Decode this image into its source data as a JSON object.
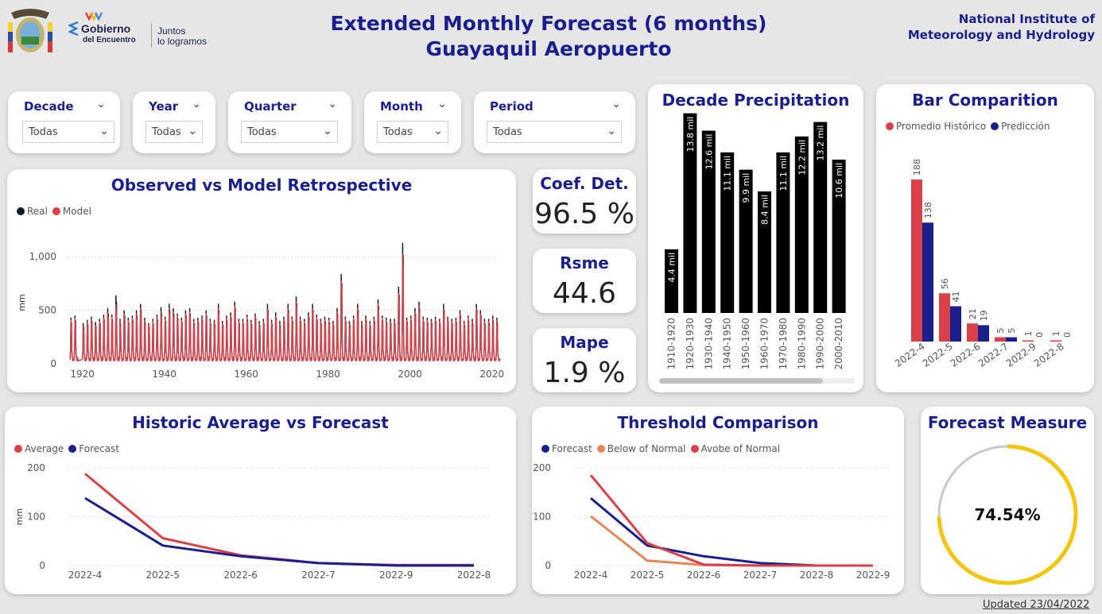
{
  "header": {
    "title_line1": "Extended Monthly Forecast (6 months)",
    "title_line2": "Guayaquil Aeropuerto",
    "institute_line1": "National Institute of",
    "institute_line2": "Meteorology and Hydrology",
    "gob_line1": "Gobierno",
    "gob_line2": "del Encuentro",
    "gob_slogan1": "Juntos",
    "gob_slogan2": "lo logramos"
  },
  "slicers": [
    {
      "label": "Decade",
      "value": "Todas"
    },
    {
      "label": "Year",
      "value": "Todas"
    },
    {
      "label": "Quarter",
      "value": "Todas"
    },
    {
      "label": "Month",
      "value": "Todas"
    },
    {
      "label": "Period",
      "value": "Todas"
    }
  ],
  "kpis": [
    {
      "title": "Coef. Det.",
      "value": "96.5 %"
    },
    {
      "title": "Rsme",
      "value": "44.6"
    },
    {
      "title": "Mape",
      "value": "1.9 %"
    }
  ],
  "footer": {
    "updated": "Updated 23/04/2022"
  },
  "colors": {
    "navy": "#1a1f8c",
    "red": "#d9414a",
    "black": "#000000",
    "orange": "#e8845a",
    "gauge": "#f2c511"
  },
  "chart_data": [
    {
      "type": "line",
      "title": "Observed vs Model Retrospective",
      "ylabel": "mm",
      "ylim": [
        0,
        1150
      ],
      "yticks": [
        0,
        500,
        1000
      ],
      "ytick_labels": [
        "0",
        "500",
        "1,000"
      ],
      "xlim": [
        1916,
        2022
      ],
      "xticks": [
        1920,
        1940,
        1960,
        1980,
        2000,
        2020
      ],
      "legend": "top-left",
      "series": [
        {
          "name": "Real",
          "color": "#111827",
          "peaks": [
            [
              1917,
              430
            ],
            [
              1918,
              450
            ],
            [
              1920,
              380
            ],
            [
              1921,
              410
            ],
            [
              1922,
              440
            ],
            [
              1923,
              390
            ],
            [
              1924,
              420
            ],
            [
              1925,
              460
            ],
            [
              1926,
              520
            ],
            [
              1927,
              460
            ],
            [
              1928,
              640
            ],
            [
              1929,
              420
            ],
            [
              1930,
              500
            ],
            [
              1931,
              430
            ],
            [
              1932,
              450
            ],
            [
              1933,
              500
            ],
            [
              1934,
              560
            ],
            [
              1935,
              430
            ],
            [
              1936,
              380
            ],
            [
              1937,
              420
            ],
            [
              1938,
              460
            ],
            [
              1939,
              530
            ],
            [
              1940,
              440
            ],
            [
              1941,
              560
            ],
            [
              1942,
              520
            ],
            [
              1943,
              470
            ],
            [
              1944,
              430
            ],
            [
              1945,
              500
            ],
            [
              1946,
              520
            ],
            [
              1947,
              420
            ],
            [
              1948,
              430
            ],
            [
              1949,
              450
            ],
            [
              1950,
              500
            ],
            [
              1951,
              420
            ],
            [
              1952,
              410
            ],
            [
              1953,
              560
            ],
            [
              1954,
              400
            ],
            [
              1955,
              450
            ],
            [
              1956,
              480
            ],
            [
              1957,
              580
            ],
            [
              1958,
              420
            ],
            [
              1959,
              420
            ],
            [
              1960,
              460
            ],
            [
              1961,
              410
            ],
            [
              1962,
              470
            ],
            [
              1963,
              400
            ],
            [
              1964,
              420
            ],
            [
              1965,
              560
            ],
            [
              1966,
              410
            ],
            [
              1967,
              480
            ],
            [
              1968,
              400
            ],
            [
              1969,
              440
            ],
            [
              1970,
              560
            ],
            [
              1971,
              440
            ],
            [
              1972,
              630
            ],
            [
              1973,
              440
            ],
            [
              1974,
              420
            ],
            [
              1975,
              480
            ],
            [
              1976,
              560
            ],
            [
              1977,
              460
            ],
            [
              1978,
              420
            ],
            [
              1979,
              440
            ],
            [
              1980,
              430
            ],
            [
              1981,
              400
            ],
            [
              1982,
              520
            ],
            [
              1983,
              840
            ],
            [
              1984,
              440
            ],
            [
              1985,
              400
            ],
            [
              1986,
              450
            ],
            [
              1987,
              560
            ],
            [
              1988,
              400
            ],
            [
              1989,
              450
            ],
            [
              1990,
              400
            ],
            [
              1991,
              440
            ],
            [
              1992,
              600
            ],
            [
              1993,
              450
            ],
            [
              1994,
              430
            ],
            [
              1995,
              420
            ],
            [
              1996,
              420
            ],
            [
              1997,
              720
            ],
            [
              1998,
              1130
            ],
            [
              1999,
              430
            ],
            [
              2000,
              450
            ],
            [
              2001,
              520
            ],
            [
              2002,
              580
            ],
            [
              2003,
              440
            ],
            [
              2004,
              430
            ],
            [
              2005,
              420
            ],
            [
              2006,
              440
            ],
            [
              2007,
              420
            ],
            [
              2008,
              560
            ],
            [
              2009,
              440
            ],
            [
              2010,
              420
            ],
            [
              2011,
              430
            ],
            [
              2012,
              500
            ],
            [
              2013,
              400
            ],
            [
              2014,
              450
            ],
            [
              2015,
              420
            ],
            [
              2016,
              560
            ],
            [
              2017,
              500
            ],
            [
              2018,
              420
            ],
            [
              2019,
              420
            ],
            [
              2020,
              450
            ],
            [
              2021,
              430
            ]
          ]
        },
        {
          "name": "Model",
          "color": "#d9414a",
          "peaks": [
            [
              1917,
              410
            ],
            [
              1918,
              430
            ],
            [
              1920,
              350
            ],
            [
              1921,
              390
            ],
            [
              1922,
              420
            ],
            [
              1923,
              360
            ],
            [
              1924,
              400
            ],
            [
              1925,
              430
            ],
            [
              1926,
              480
            ],
            [
              1927,
              440
            ],
            [
              1928,
              560
            ],
            [
              1929,
              400
            ],
            [
              1930,
              470
            ],
            [
              1931,
              410
            ],
            [
              1932,
              430
            ],
            [
              1933,
              470
            ],
            [
              1934,
              520
            ],
            [
              1935,
              410
            ],
            [
              1936,
              360
            ],
            [
              1937,
              400
            ],
            [
              1938,
              440
            ],
            [
              1939,
              490
            ],
            [
              1940,
              420
            ],
            [
              1941,
              520
            ],
            [
              1942,
              490
            ],
            [
              1943,
              450
            ],
            [
              1944,
              410
            ],
            [
              1945,
              470
            ],
            [
              1946,
              490
            ],
            [
              1947,
              400
            ],
            [
              1948,
              410
            ],
            [
              1949,
              430
            ],
            [
              1950,
              470
            ],
            [
              1951,
              400
            ],
            [
              1952,
              390
            ],
            [
              1953,
              520
            ],
            [
              1954,
              380
            ],
            [
              1955,
              430
            ],
            [
              1956,
              450
            ],
            [
              1957,
              540
            ],
            [
              1958,
              400
            ],
            [
              1959,
              400
            ],
            [
              1960,
              440
            ],
            [
              1961,
              390
            ],
            [
              1962,
              450
            ],
            [
              1963,
              380
            ],
            [
              1964,
              400
            ],
            [
              1965,
              520
            ],
            [
              1966,
              390
            ],
            [
              1967,
              450
            ],
            [
              1968,
              380
            ],
            [
              1969,
              420
            ],
            [
              1970,
              520
            ],
            [
              1971,
              420
            ],
            [
              1972,
              580
            ],
            [
              1973,
              420
            ],
            [
              1974,
              400
            ],
            [
              1975,
              450
            ],
            [
              1976,
              520
            ],
            [
              1977,
              440
            ],
            [
              1978,
              400
            ],
            [
              1979,
              420
            ],
            [
              1980,
              410
            ],
            [
              1981,
              380
            ],
            [
              1982,
              490
            ],
            [
              1983,
              780
            ],
            [
              1984,
              420
            ],
            [
              1985,
              380
            ],
            [
              1986,
              430
            ],
            [
              1987,
              520
            ],
            [
              1988,
              380
            ],
            [
              1989,
              430
            ],
            [
              1990,
              380
            ],
            [
              1991,
              420
            ],
            [
              1992,
              560
            ],
            [
              1993,
              430
            ],
            [
              1994,
              410
            ],
            [
              1995,
              400
            ],
            [
              1996,
              400
            ],
            [
              1997,
              660
            ],
            [
              1998,
              1030
            ],
            [
              1999,
              410
            ],
            [
              2000,
              430
            ],
            [
              2001,
              490
            ],
            [
              2002,
              540
            ],
            [
              2003,
              420
            ],
            [
              2004,
              410
            ],
            [
              2005,
              400
            ],
            [
              2006,
              420
            ],
            [
              2007,
              400
            ],
            [
              2008,
              520
            ],
            [
              2009,
              420
            ],
            [
              2010,
              400
            ],
            [
              2011,
              410
            ],
            [
              2012,
              470
            ],
            [
              2013,
              380
            ],
            [
              2014,
              430
            ],
            [
              2015,
              400
            ],
            [
              2016,
              520
            ],
            [
              2017,
              470
            ],
            [
              2018,
              400
            ],
            [
              2019,
              400
            ],
            [
              2020,
              420
            ],
            [
              2021,
              410
            ]
          ]
        }
      ]
    },
    {
      "type": "bar",
      "title": "Decade Precipitation",
      "categories": [
        "1910-1920",
        "1920-1930",
        "1930-1940",
        "1940-1950",
        "1950-1960",
        "1960-1970",
        "1970-1980",
        "1980-1990",
        "1990-2000",
        "2000-2010"
      ],
      "values": [
        4.4,
        13.8,
        12.6,
        11.1,
        9.9,
        8.4,
        11.1,
        12.2,
        13.2,
        10.6
      ],
      "labels": [
        "4.4 mil",
        "13.8 mil",
        "12.6 mil",
        "11.1 mil",
        "9.9 mil",
        "8.4 mil",
        "11.1 mil",
        "12.2 mil",
        "13.2 mil",
        "10.6 mil"
      ],
      "ylim": [
        0,
        14
      ],
      "color": "#000000"
    },
    {
      "type": "bar",
      "title": "Bar Comparition",
      "categories": [
        "2022-4",
        "2022-5",
        "2022-6",
        "2022-7",
        "2022-9",
        "2022-8"
      ],
      "legend": "top-left",
      "ylim": [
        0,
        200
      ],
      "series": [
        {
          "name": "Promedio Histórico",
          "color": "#d9414a",
          "values": [
            188,
            56,
            21,
            5,
            1,
            1
          ]
        },
        {
          "name": "Predicción",
          "color": "#1a1f8c",
          "values": [
            138,
            41,
            19,
            5,
            0,
            0
          ]
        }
      ]
    },
    {
      "type": "line",
      "title": "Historic Average vs Forecast",
      "ylabel": "mm",
      "ylim": [
        0,
        200
      ],
      "yticks": [
        0,
        100,
        200
      ],
      "categories": [
        "2022-4",
        "2022-5",
        "2022-6",
        "2022-7",
        "2022-9",
        "2022-8"
      ],
      "legend": "top-left",
      "series": [
        {
          "name": "Average",
          "color": "#d9414a",
          "values": [
            188,
            56,
            21,
            5,
            1,
            1
          ]
        },
        {
          "name": "Forecast",
          "color": "#1a1f8c",
          "values": [
            138,
            41,
            19,
            5,
            0,
            0
          ]
        }
      ]
    },
    {
      "type": "line",
      "title": "Threshold Comparison",
      "ylim": [
        0,
        200
      ],
      "yticks": [
        0,
        100,
        200
      ],
      "categories": [
        "2022-4",
        "2022-5",
        "2022-6",
        "2022-7",
        "2022-8",
        "2022-9"
      ],
      "legend": "top-left",
      "series": [
        {
          "name": "Forecast",
          "color": "#1a1f8c",
          "values": [
            138,
            41,
            19,
            5,
            0,
            0
          ]
        },
        {
          "name": "Below of Normal",
          "color": "#e8845a",
          "values": [
            101,
            10,
            1,
            0,
            0,
            0
          ]
        },
        {
          "name": "Avobe of Normal",
          "color": "#d9414a",
          "values": [
            185,
            46,
            2,
            0,
            0,
            0
          ]
        }
      ]
    },
    {
      "type": "gauge",
      "title": "Forecast Measure",
      "value": 74.54,
      "label": "74.54%"
    }
  ]
}
